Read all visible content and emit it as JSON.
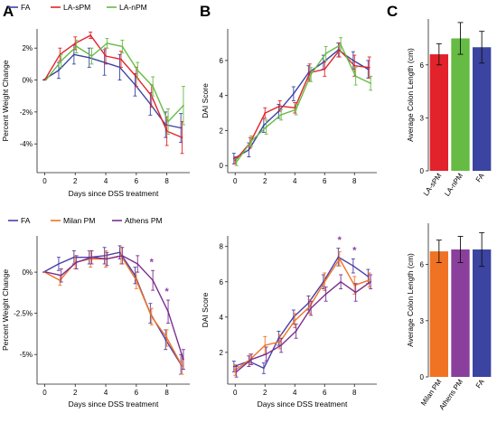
{
  "panel_letters": [
    "A",
    "B",
    "C"
  ],
  "chart_data": [
    {
      "id": "a-top",
      "type": "line",
      "xlabel": "Days since DSS treatment",
      "ylabel": "Percent Weight Change",
      "xlim": [
        -0.5,
        9.5
      ],
      "ylim": [
        -5.8,
        3.2
      ],
      "xticks": [
        0,
        2,
        4,
        6,
        8
      ],
      "xtick_labels": [
        "0",
        "2",
        "4",
        "6",
        "8"
      ],
      "yticks": [
        -4,
        -2,
        0,
        2
      ],
      "ytick_labels": [
        "-4%",
        "-2%",
        "0%",
        "2%"
      ],
      "legend": "top",
      "x": [
        0,
        1,
        2,
        3,
        4,
        5,
        6,
        7,
        8,
        9
      ],
      "series": [
        {
          "name": "FA",
          "color": "#3b44a0",
          "values": [
            0,
            0.6,
            1.6,
            1.4,
            1.1,
            0.8,
            -0.3,
            -1.5,
            -2.8,
            -3.0
          ],
          "errors": [
            0,
            0.5,
            0.6,
            0.6,
            0.8,
            0.8,
            0.7,
            0.7,
            0.8,
            0.9
          ]
        },
        {
          "name": "LA-sPM",
          "color": "#e2232c",
          "values": [
            0,
            1.6,
            2.3,
            2.8,
            1.5,
            1.3,
            0.2,
            -1.0,
            -3.2,
            -3.6
          ],
          "errors": [
            0,
            0.4,
            0.4,
            0.2,
            0.5,
            0.5,
            0.6,
            0.7,
            0.9,
            1.0
          ]
        },
        {
          "name": "LA-nPM",
          "color": "#66bb44",
          "values": [
            0,
            1.2,
            2.1,
            1.5,
            2.3,
            2.1,
            0.6,
            -0.4,
            -2.6,
            -1.6
          ],
          "errors": [
            0,
            0.4,
            0.4,
            0.5,
            0.3,
            0.4,
            0.5,
            0.6,
            0.8,
            1.2
          ]
        }
      ]
    },
    {
      "id": "b-top",
      "type": "line",
      "xlabel": "",
      "ylabel": "DAI Score",
      "xlim": [
        -0.5,
        9.5
      ],
      "ylim": [
        -0.4,
        7.8
      ],
      "xticks": [
        0,
        2,
        4,
        6,
        8
      ],
      "xtick_labels": [
        "0",
        "2",
        "4",
        "6",
        "8"
      ],
      "yticks": [
        0,
        2,
        4,
        6
      ],
      "ytick_labels": [
        "0",
        "2",
        "4",
        "6"
      ],
      "legend": "none",
      "x": [
        0,
        1,
        2,
        3,
        4,
        5,
        6,
        7,
        8,
        9
      ],
      "series": [
        {
          "name": "",
          "color": "#3b44a0",
          "values": [
            0.4,
            0.9,
            2.3,
            3.1,
            4.1,
            5.3,
            5.9,
            6.6,
            6.0,
            5.5
          ],
          "errors": [
            0.3,
            0.4,
            0.4,
            0.4,
            0.4,
            0.4,
            0.4,
            0.4,
            0.5,
            0.5
          ]
        },
        {
          "name": "",
          "color": "#e2232c",
          "values": [
            0.3,
            1.3,
            3.0,
            3.4,
            3.3,
            5.3,
            5.5,
            6.6,
            5.7,
            5.6
          ],
          "errors": [
            0.2,
            0.3,
            0.3,
            0.3,
            0.3,
            0.5,
            0.4,
            0.4,
            0.6,
            0.6
          ]
        },
        {
          "name": "",
          "color": "#66bb44",
          "values": [
            0.2,
            1.4,
            2.2,
            2.9,
            3.2,
            5.2,
            6.4,
            6.9,
            5.1,
            4.7
          ],
          "errors": [
            0.2,
            0.3,
            0.4,
            0.3,
            0.3,
            0.4,
            0.4,
            0.4,
            0.5,
            0.4
          ]
        }
      ]
    },
    {
      "id": "c-top",
      "type": "bar",
      "xlabel": "",
      "ylabel": "Average Colon Length (cm)",
      "ylim": [
        0,
        8.6
      ],
      "yticks": [
        0,
        3,
        6
      ],
      "ytick_labels": [
        "0",
        "3",
        "6"
      ],
      "categories": [
        "LA-sPM",
        "LA-nPM",
        "FA"
      ],
      "values": [
        6.6,
        7.5,
        7.0
      ],
      "errors": [
        0.6,
        0.9,
        0.9
      ],
      "colors": [
        "#e2232c",
        "#66bb44",
        "#3b44a0"
      ]
    },
    {
      "id": "a-bottom",
      "type": "line",
      "xlabel": "Days since DSS treatment",
      "ylabel": "Percent Weight Change",
      "xlim": [
        -0.5,
        9.5
      ],
      "ylim": [
        -6.8,
        2.2
      ],
      "xticks": [
        0,
        2,
        4,
        6,
        8
      ],
      "xtick_labels": [
        "0",
        "2",
        "4",
        "6",
        "8"
      ],
      "yticks": [
        -5,
        -2.5,
        0
      ],
      "ytick_labels": [
        "-5%",
        "-2.5%",
        "0%"
      ],
      "legend": "top",
      "annotations": [
        {
          "x": 7,
          "text": "*"
        },
        {
          "x": 8,
          "text": "*"
        }
      ],
      "x": [
        0,
        1,
        2,
        3,
        4,
        5,
        6,
        7,
        8,
        9
      ],
      "series": [
        {
          "name": "FA",
          "color": "#4a3fa8",
          "values": [
            0,
            0.5,
            0.9,
            0.9,
            1.0,
            1.2,
            -0.2,
            -2.5,
            -4.1,
            -5.6
          ],
          "errors": [
            0,
            0.4,
            0.4,
            0.4,
            0.5,
            0.4,
            0.5,
            0.6,
            0.6,
            0.6
          ]
        },
        {
          "name": "Milan PM",
          "color": "#f07323",
          "values": [
            0,
            -0.5,
            0.6,
            0.8,
            0.8,
            1.0,
            -0.5,
            -2.7,
            -4.0,
            -5.7
          ],
          "errors": [
            0,
            0.3,
            0.4,
            0.5,
            0.5,
            0.5,
            0.5,
            0.5,
            0.5,
            0.5
          ]
        },
        {
          "name": "Athens PM",
          "color": "#7b2f91",
          "values": [
            0,
            -0.2,
            0.6,
            0.9,
            0.8,
            1.0,
            0.5,
            -0.5,
            -2.4,
            -5.3
          ],
          "errors": [
            0,
            0.4,
            0.4,
            0.4,
            0.4,
            0.5,
            0.5,
            0.6,
            0.7,
            0.6
          ]
        }
      ]
    },
    {
      "id": "b-bottom",
      "type": "line",
      "xlabel": "Days since DSS treatment",
      "ylabel": "DAI Score",
      "xlim": [
        -0.5,
        9.5
      ],
      "ylim": [
        0.2,
        8.6
      ],
      "xticks": [
        0,
        2,
        4,
        6,
        8
      ],
      "xtick_labels": [
        "0",
        "2",
        "4",
        "6",
        "8"
      ],
      "yticks": [
        2,
        4,
        6,
        8
      ],
      "ytick_labels": [
        "2",
        "4",
        "6",
        "8"
      ],
      "legend": "none",
      "annotations": [
        {
          "x": 7,
          "text": "*"
        },
        {
          "x": 8,
          "text": "*"
        }
      ],
      "x": [
        0,
        1,
        2,
        3,
        4,
        5,
        6,
        7,
        8,
        9
      ],
      "series": [
        {
          "name": "",
          "color": "#4a3fa8",
          "values": [
            1.2,
            1.5,
            1.1,
            2.8,
            4.0,
            4.8,
            6.0,
            7.4,
            6.9,
            6.3
          ],
          "errors": [
            0.3,
            0.3,
            0.3,
            0.4,
            0.4,
            0.4,
            0.4,
            0.5,
            0.4,
            0.4
          ]
        },
        {
          "name": "",
          "color": "#f07323",
          "values": [
            1.0,
            1.6,
            2.4,
            2.6,
            3.8,
            4.6,
            6.0,
            7.3,
            5.8,
            6.1
          ],
          "errors": [
            0.3,
            0.3,
            0.5,
            0.4,
            0.4,
            0.4,
            0.5,
            0.4,
            0.5,
            0.4
          ]
        },
        {
          "name": "",
          "color": "#7b2f91",
          "values": [
            0.9,
            1.6,
            1.9,
            2.4,
            3.2,
            4.5,
            5.3,
            6.0,
            5.4,
            6.0
          ],
          "errors": [
            0.3,
            0.3,
            0.4,
            0.4,
            0.4,
            0.4,
            0.4,
            0.4,
            0.5,
            0.4
          ]
        }
      ]
    },
    {
      "id": "c-bottom",
      "type": "bar",
      "xlabel": "",
      "ylabel": "Average Colon Length (cm)",
      "ylim": [
        0,
        8.2
      ],
      "yticks": [
        0,
        3,
        6
      ],
      "ytick_labels": [
        "0",
        "3",
        "6"
      ],
      "categories": [
        "Milan PM",
        "Athens PM",
        "FA"
      ],
      "values": [
        6.7,
        6.8,
        6.8
      ],
      "errors": [
        0.6,
        0.7,
        0.9
      ],
      "colors": [
        "#f07323",
        "#8a3f9c",
        "#3b44a0"
      ]
    }
  ]
}
